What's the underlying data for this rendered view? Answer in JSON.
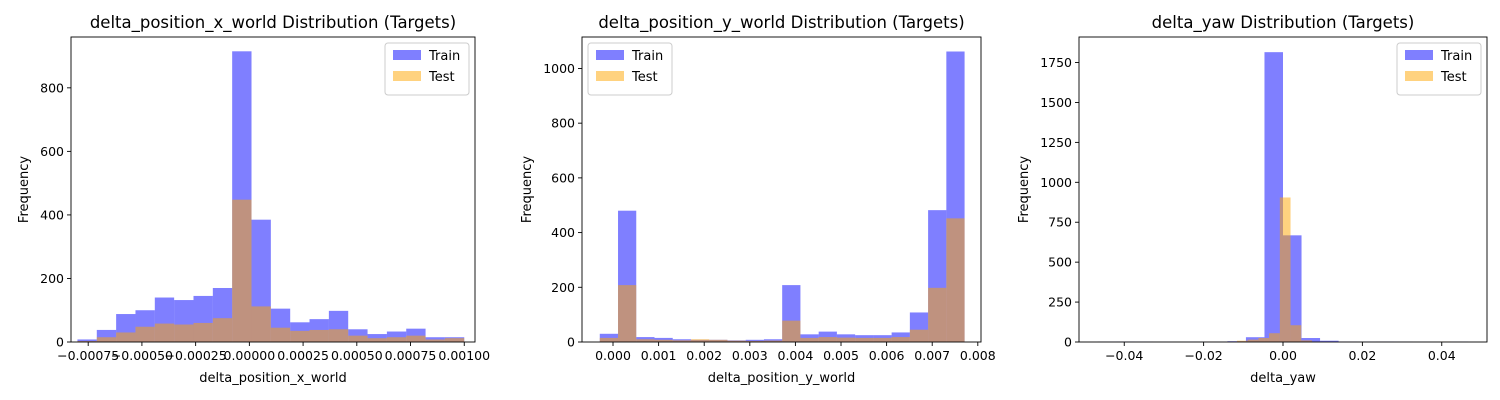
{
  "chart_data": [
    {
      "type": "bar",
      "title": "delta_position_x_world Distribution (Targets)",
      "xlabel": "delta_position_x_world",
      "ylabel": "Frequency",
      "xlim": [
        -0.00083,
        0.00105
      ],
      "ylim": [
        0,
        960
      ],
      "xticks": [
        -0.00075,
        -0.0005,
        -0.00025,
        0.0,
        0.00025,
        0.0005,
        0.00075,
        0.001
      ],
      "xtick_labels": [
        "−0.00075",
        "−0.00050",
        "−0.00025",
        "0.00000",
        "0.00025",
        "0.00050",
        "0.00075",
        "0.00100"
      ],
      "yticks": [
        0,
        200,
        400,
        600,
        800
      ],
      "ytick_labels": [
        "0",
        "200",
        "400",
        "600",
        "800"
      ],
      "legend_position": "top-right",
      "grid": false,
      "series": [
        {
          "name": "Train",
          "color": "#0000ff",
          "alpha": 0.5,
          "bins": [
            -0.0008,
            -0.00071,
            -0.00062,
            -0.00053,
            -0.00044,
            -0.00035,
            -0.00026,
            -0.00017,
            -8e-05,
            1e-05,
            0.0001,
            0.00019,
            0.00028,
            0.00037,
            0.00046,
            0.00055,
            0.00064,
            0.00073,
            0.00082,
            0.00091,
            0.001
          ],
          "values": [
            8,
            38,
            88,
            100,
            140,
            132,
            145,
            170,
            915,
            385,
            105,
            62,
            72,
            98,
            40,
            25,
            33,
            42,
            15,
            15
          ]
        },
        {
          "name": "Test",
          "color": "#ffa500",
          "alpha": 0.5,
          "bins": [
            -0.0008,
            -0.00071,
            -0.00062,
            -0.00053,
            -0.00044,
            -0.00035,
            -0.00026,
            -0.00017,
            -8e-05,
            1e-05,
            0.0001,
            0.00019,
            0.00028,
            0.00037,
            0.00046,
            0.00055,
            0.00064,
            0.00073,
            0.00082,
            0.00091,
            0.001
          ],
          "values": [
            3,
            15,
            30,
            48,
            58,
            55,
            60,
            75,
            448,
            112,
            45,
            35,
            38,
            40,
            20,
            12,
            15,
            20,
            8,
            12
          ]
        }
      ]
    },
    {
      "type": "bar",
      "title": "delta_position_y_world Distribution (Targets)",
      "xlabel": "delta_position_y_world",
      "ylabel": "Frequency",
      "xlim": [
        -0.00068,
        0.00807
      ],
      "ylim": [
        0,
        1115
      ],
      "xticks": [
        0.0,
        0.001,
        0.002,
        0.003,
        0.004,
        0.005,
        0.006,
        0.007,
        0.008
      ],
      "xtick_labels": [
        "0.000",
        "0.001",
        "0.002",
        "0.003",
        "0.004",
        "0.005",
        "0.006",
        "0.007",
        "0.008"
      ],
      "yticks": [
        0,
        200,
        400,
        600,
        800,
        1000
      ],
      "ytick_labels": [
        "0",
        "200",
        "400",
        "600",
        "800",
        "1000"
      ],
      "legend_position": "top-left",
      "grid": false,
      "series": [
        {
          "name": "Train",
          "color": "#0000ff",
          "alpha": 0.5,
          "bins": [
            -0.00029,
            0.00011,
            0.00051,
            0.00091,
            0.00131,
            0.00171,
            0.00211,
            0.00251,
            0.00291,
            0.00331,
            0.00371,
            0.00411,
            0.00451,
            0.00491,
            0.00531,
            0.00571,
            0.00611,
            0.00651,
            0.00691,
            0.00731,
            0.00771
          ],
          "values": [
            30,
            480,
            18,
            15,
            10,
            8,
            8,
            6,
            8,
            10,
            208,
            28,
            38,
            28,
            25,
            25,
            35,
            108,
            482,
            1062
          ]
        },
        {
          "name": "Test",
          "color": "#ffa500",
          "alpha": 0.5,
          "bins": [
            -0.00029,
            0.00011,
            0.00051,
            0.00091,
            0.00131,
            0.00171,
            0.00211,
            0.00251,
            0.00291,
            0.00331,
            0.00371,
            0.00411,
            0.00451,
            0.00491,
            0.00531,
            0.00571,
            0.00611,
            0.00651,
            0.00691,
            0.00731,
            0.00771
          ],
          "values": [
            15,
            208,
            10,
            8,
            6,
            10,
            8,
            5,
            4,
            5,
            78,
            15,
            18,
            16,
            15,
            15,
            18,
            45,
            198,
            452
          ]
        }
      ]
    },
    {
      "type": "bar",
      "title": "delta_yaw Distribution (Targets)",
      "xlabel": "delta_yaw",
      "ylabel": "Frequency",
      "xlim": [
        -0.0514,
        0.0514
      ],
      "ylim": [
        0,
        1910
      ],
      "xticks": [
        -0.04,
        -0.02,
        0.0,
        0.02,
        0.04
      ],
      "xtick_labels": [
        "−0.04",
        "−0.02",
        "0.00",
        "0.02",
        "0.04"
      ],
      "yticks": [
        0,
        250,
        500,
        750,
        1000,
        1250,
        1500,
        1750
      ],
      "ytick_labels": [
        "0",
        "250",
        "500",
        "750",
        "1000",
        "1250",
        "1500",
        "1750"
      ],
      "legend_position": "top-right",
      "grid": false,
      "series": [
        {
          "name": "Train",
          "color": "#0000ff",
          "alpha": 0.5,
          "bins": [
            -0.0467,
            -0.04203,
            -0.03736,
            -0.03269,
            -0.02802,
            -0.02335,
            -0.01868,
            -0.01401,
            -0.00934,
            -0.00467,
            0.0,
            0.00467,
            0.00934,
            0.01401,
            0.01868,
            0.02335,
            0.02802,
            0.03269,
            0.03736,
            0.04203,
            0.0467
          ],
          "values": [
            2,
            3,
            2,
            1,
            1,
            2,
            2,
            5,
            30,
            1815,
            668,
            25,
            8,
            3,
            2,
            3,
            2,
            1,
            1,
            2
          ]
        },
        {
          "name": "Test",
          "color": "#ffa500",
          "alpha": 0.5,
          "bins": [
            -0.0467,
            -0.044,
            -0.0413,
            -0.0386,
            -0.0359,
            -0.0332,
            -0.0305,
            -0.0278,
            -0.0251,
            -0.0224,
            -0.0197,
            -0.017,
            -0.0143,
            -0.0116,
            -0.0089,
            -0.0062,
            -0.0035,
            -0.0008,
            0.0019,
            0.0046,
            0.0073,
            0.01,
            0.0127,
            0.0154,
            0.0181,
            0.0208,
            0.0235,
            0.0262,
            0.0289,
            0.0316,
            0.0343,
            0.037,
            0.0397,
            0.0424,
            0.0451
          ],
          "values": [
            1,
            0,
            1,
            0,
            0,
            1,
            0,
            1,
            0,
            1,
            2,
            1,
            3,
            8,
            15,
            25,
            55,
            905,
            105,
            10,
            3,
            2,
            1,
            1,
            1,
            0,
            1,
            0,
            1,
            1,
            0,
            1,
            3,
            1
          ]
        }
      ]
    }
  ]
}
